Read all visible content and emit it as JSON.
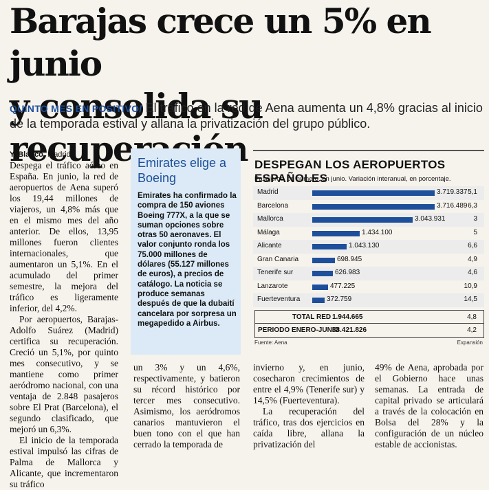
{
  "headline": {
    "line1": "Barajas crece un 5% en junio",
    "line2": "y consolida su recuperación"
  },
  "deck": {
    "kicker": "QUINTO MES EN POSITIVO/",
    "text": "El tráfico en la red de Aena aumenta un 4,8% gracias al inicio de la temporada estival y allana la privatización del grupo público."
  },
  "byline": {
    "author": "Y. Blanco.",
    "location": "Madrid"
  },
  "column1": {
    "p1": "Despega el tráfico aéreo en España. En junio, la red de aeropuertos de Aena superó los 19,44 millones de viajeros, un 4,8% más que en el mismo mes del año anterior. De ellos, 13,95 millones fueron clientes internacionales, que aumentaron un 5,1%. En el acumulado del primer semestre, la mejora del tráfico es ligeramente inferior, del 4,2%.",
    "p2": "Por aeropuertos, Barajas-Adolfo Suárez (Madrid) certifica su recuperación. Creció un 5,1%, por quinto mes consecutivo, y se mantiene como primer aeródromo nacional, con una ventaja de 2.848 pasajeros sobre El Prat (Barcelona), el segundo clasificado, que mejoró un 6,3%.",
    "p3": "El inicio de la temporada estival impulsó las cifras de Palma de Mallorca y Alicante, que incrementaron su tráfico"
  },
  "column2": {
    "p1": "un 3% y un 4,6%, respectivamente, y batieron su récord histórico por tercer mes consecutivo. Asimismo, los aeródromos canarios mantuvieron el buen tono con el que han cerrado la temporada de"
  },
  "column3": {
    "p1": "invierno y, en junio, cosecharon crecimientos de entre el 4,9% (Tenerife sur) y 14,5% (Fuerteventura).",
    "p2": "La recuperación del tráfico, tras dos ejercicios en caída libre, allana la privatización del"
  },
  "column4": {
    "p1": "49% de Aena, aprobada por el Gobierno hace unas semanas. La entrada de capital privado se articulará a través de la colocación en Bolsa del 28% y la configuración de un núcleo estable de accionistas."
  },
  "sidebox": {
    "title": "Emirates elige a Boeing",
    "text": "Emirates ha confirmado la compra de 150 aviones Boeing 777X, a la que se suman opciones sobre otras 50 aeronaves. El valor conjunto ronda los 75.000 millones de dólares (55.127 millones de euros), a precios de catálogo. La noticia se produce semanas después de que la dubaití cancelara por sorpresa un megapedido a Airbus."
  },
  "chart_data": {
    "type": "bar",
    "title": "DESPEGAN LOS AEROPUERTOS ESPAÑOLES",
    "subtitle": "Pasajeros, en número, en junio. Variación interanual, en porcentaje.",
    "categories": [
      "Madrid",
      "Barcelona",
      "Mallorca",
      "Málaga",
      "Alicante",
      "Gran Canaria",
      "Tenerife sur",
      "Lanzarote",
      "Fuerteventura"
    ],
    "values": [
      3719337,
      3716489,
      3043931,
      1434100,
      1043130,
      698945,
      626983,
      477225,
      372759
    ],
    "value_labels": [
      "3.719.337",
      "3.716.489",
      "3.043.931",
      "1.434.100",
      "1.043.130",
      "698.945",
      "626.983",
      "477.225",
      "372.759"
    ],
    "pct_labels": [
      "5,1",
      "6,3",
      "3",
      "5",
      "6,6",
      "4,9",
      "4,6",
      "10,9",
      "14,5"
    ],
    "totals": [
      {
        "label": "TOTAL RED",
        "value": "1.944.665",
        "pct": "4,8"
      },
      {
        "label": "PERIODO ENERO-JUNIO",
        "value": "88.421.826",
        "pct": "4,2"
      }
    ],
    "source": "Fuente: Aena",
    "brand": "Expansión",
    "colors": {
      "bar": "#1e4f9b"
    }
  }
}
